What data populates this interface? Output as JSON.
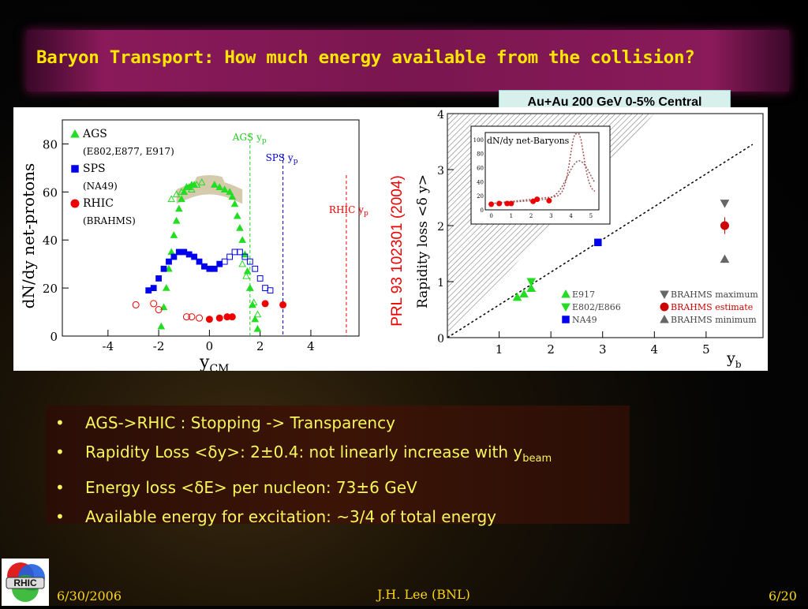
{
  "slide": {
    "title": "Baryon Transport: How much energy available from the collision?",
    "badge": "Au+Au 200 GeV 0-5% Central",
    "citation": "PRL 93 102301 (2004)",
    "bullets": [
      {
        "pre": "AGS->RHIC : Stopping -> Transparency",
        "post": "",
        "sub": ""
      },
      {
        "pre": "Rapidity Loss <δy>: 2±0.4: not linearly increase with y",
        "post": "",
        "sub": "beam"
      },
      {
        "pre": "Energy loss <δE> per nucleon: 73±6 GeV",
        "post": "",
        "sub": ""
      },
      {
        "pre": "Available energy for excitation: ~3/4 of total energy",
        "post": "",
        "sub": ""
      }
    ],
    "footer": {
      "date": "6/30/2006",
      "author": "J.H. Lee (BNL)",
      "page": "6/20"
    },
    "logo_text": "RHIC"
  },
  "chart_data": [
    {
      "type": "scatter",
      "xlabel": "y",
      "xlabel_sub": "CM",
      "ylabel": "dN/dy net-protons",
      "xlim": [
        -5.8,
        5.9
      ],
      "ylim": [
        0,
        90
      ],
      "xticks": [
        -4,
        -2,
        0,
        2,
        4
      ],
      "yticks": [
        0,
        20,
        40,
        60,
        80
      ],
      "legend": [
        {
          "name": "AGS",
          "sub": "(E802,E877, E917)",
          "color": "#22dd22",
          "marker": "triangle"
        },
        {
          "name": "SPS",
          "sub": "(NA49)",
          "color": "#0000ee",
          "marker": "square"
        },
        {
          "name": "RHIC",
          "sub": "(BRAHMS)",
          "color": "#ee0000",
          "marker": "circle"
        }
      ],
      "beam_lines": [
        {
          "label": "AGS y",
          "sub": "p",
          "x": 1.6,
          "color": "#22cc22"
        },
        {
          "label": "SPS y",
          "sub": "p",
          "x": 2.9,
          "color": "#0000cc"
        },
        {
          "label": "RHIC y",
          "sub": "p",
          "x": 5.4,
          "color": "#ee0000"
        }
      ],
      "series": [
        {
          "name": "AGS",
          "color": "#22dd22",
          "marker": "triangle",
          "points": [
            [
              -1.9,
              4
            ],
            [
              -1.8,
              12
            ],
            [
              -1.7,
              20
            ],
            [
              -1.6,
              28
            ],
            [
              -1.5,
              35
            ],
            [
              -1.4,
              42
            ],
            [
              -1.3,
              48
            ],
            [
              -1.2,
              53
            ],
            [
              -1.1,
              57
            ],
            [
              -1.0,
              60
            ],
            [
              -0.9,
              62
            ],
            [
              -0.8,
              62
            ],
            [
              -0.7,
              63
            ],
            [
              -0.6,
              63
            ],
            [
              0.2,
              63
            ],
            [
              0.4,
              62
            ],
            [
              0.6,
              61
            ],
            [
              0.8,
              60
            ],
            [
              0.9,
              58
            ],
            [
              1.0,
              55
            ],
            [
              1.1,
              50
            ],
            [
              1.2,
              45
            ],
            [
              1.3,
              40
            ],
            [
              1.4,
              34
            ],
            [
              1.5,
              27
            ],
            [
              1.6,
              20
            ],
            [
              1.7,
              13
            ],
            [
              1.8,
              7
            ],
            [
              1.9,
              3
            ]
          ]
        },
        {
          "name": "AGS reflected",
          "color": "#22dd22",
          "marker": "triangle-open",
          "points": [
            [
              -1.5,
              57
            ],
            [
              -1.3,
              59
            ],
            [
              -1.1,
              60
            ],
            [
              -0.9,
              62
            ],
            [
              -0.7,
              61
            ],
            [
              -0.5,
              63
            ],
            [
              -0.3,
              64
            ],
            [
              1.3,
              30
            ],
            [
              1.45,
              25
            ],
            [
              1.6,
              20
            ],
            [
              1.75,
              14
            ],
            [
              1.9,
              9
            ]
          ]
        },
        {
          "name": "SPS",
          "color": "#0000ee",
          "marker": "square",
          "points": [
            [
              -2.4,
              19
            ],
            [
              -2.2,
              20
            ],
            [
              -2.0,
              24
            ],
            [
              -1.8,
              28
            ],
            [
              -1.6,
              31
            ],
            [
              -1.4,
              33
            ],
            [
              -1.2,
              35
            ],
            [
              -1.0,
              35
            ],
            [
              -0.8,
              34
            ],
            [
              -0.6,
              33
            ],
            [
              -0.4,
              31
            ],
            [
              -0.2,
              29
            ],
            [
              0,
              28
            ],
            [
              0.2,
              28
            ],
            [
              0.4,
              30
            ]
          ]
        },
        {
          "name": "SPS reflected",
          "color": "#0000ee",
          "marker": "square-open",
          "points": [
            [
              0.6,
              31
            ],
            [
              0.8,
              33
            ],
            [
              1.0,
              35
            ],
            [
              1.2,
              35
            ],
            [
              1.4,
              33
            ],
            [
              1.6,
              31
            ],
            [
              1.8,
              28
            ],
            [
              2.0,
              24
            ],
            [
              2.2,
              20
            ],
            [
              2.4,
              19
            ]
          ]
        },
        {
          "name": "RHIC",
          "color": "#ee0000",
          "marker": "circle",
          "points": [
            [
              0,
              7
            ],
            [
              0.4,
              7.5
            ],
            [
              0.7,
              8
            ],
            [
              0.9,
              8
            ],
            [
              2.2,
              13.5
            ],
            [
              2.9,
              13
            ]
          ]
        },
        {
          "name": "RHIC reflected",
          "color": "#ee0000",
          "marker": "circle-open",
          "points": [
            [
              -2.9,
              13
            ],
            [
              -2.2,
              13.5
            ],
            [
              -2.0,
              11
            ],
            [
              -0.9,
              8
            ],
            [
              -0.7,
              8
            ],
            [
              -0.4,
              7.5
            ]
          ]
        }
      ]
    },
    {
      "type": "scatter",
      "xlabel": "y",
      "xlabel_sub": "b",
      "ylabel": "Rapidity loss <δ y>",
      "xlim": [
        0,
        6.1
      ],
      "ylim": [
        0,
        4
      ],
      "xticks": [
        1,
        2,
        3,
        4,
        5
      ],
      "yticks": [
        0,
        1,
        2,
        3,
        4
      ],
      "legend": [
        {
          "name": "E917",
          "color": "#22dd22",
          "marker": "triangle"
        },
        {
          "name": "E802/E866",
          "color": "#22dd22",
          "marker": "triangle-down"
        },
        {
          "name": "NA49",
          "color": "#0000ee",
          "marker": "square"
        },
        {
          "name": "BRAHMS maximum",
          "color": "#666666",
          "marker": "triangle-down"
        },
        {
          "name": "BRAHMS estimate",
          "color": "#cc0000",
          "marker": "circle"
        },
        {
          "name": "BRAHMS minimum",
          "color": "#666666",
          "marker": "triangle"
        }
      ],
      "series": [
        {
          "name": "E917",
          "color": "#22dd22",
          "marker": "triangle",
          "points": [
            [
              1.35,
              0.72
            ],
            [
              1.48,
              0.78
            ],
            [
              1.62,
              0.88
            ]
          ]
        },
        {
          "name": "E802/E866",
          "color": "#22dd22",
          "marker": "triangle-down",
          "points": [
            [
              1.62,
              1.0
            ]
          ]
        },
        {
          "name": "NA49",
          "color": "#0000ee",
          "marker": "square",
          "points": [
            [
              2.91,
              1.7
            ]
          ]
        },
        {
          "name": "BRAHMS maximum",
          "color": "#666666",
          "marker": "triangle-down",
          "points": [
            [
              5.36,
              2.4
            ]
          ]
        },
        {
          "name": "BRAHMS estimate",
          "color": "#cc0000",
          "marker": "circle",
          "points": [
            [
              5.36,
              2.0
            ]
          ]
        },
        {
          "name": "BRAHMS minimum",
          "color": "#666666",
          "marker": "triangle",
          "points": [
            [
              5.36,
              1.4
            ]
          ]
        }
      ],
      "inset": {
        "title": "dN/dy net-Baryons",
        "xlim": [
          -0.3,
          5.4
        ],
        "ylim": [
          0,
          110
        ],
        "xticks": [
          0,
          1,
          2,
          3,
          4,
          5
        ],
        "yticks": [
          0,
          20,
          40,
          60,
          80,
          100
        ],
        "points": [
          [
            0,
            8
          ],
          [
            0.4,
            9
          ],
          [
            0.8,
            9
          ],
          [
            1.0,
            9
          ],
          [
            2.1,
            12
          ],
          [
            2.3,
            15
          ],
          [
            2.9,
            13
          ]
        ]
      }
    }
  ]
}
